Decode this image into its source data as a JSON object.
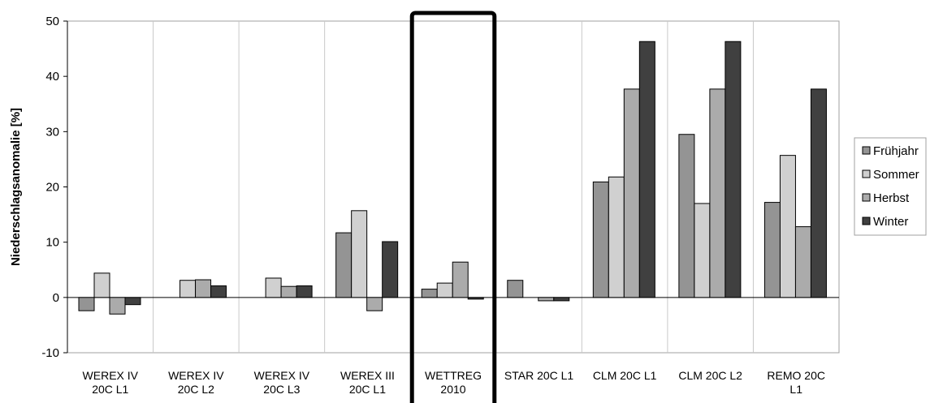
{
  "chart_data": {
    "type": "bar",
    "ylabel": "Niederschlagsanomalie [%]",
    "xlabel": "",
    "ylim": [
      -10,
      50
    ],
    "yticks": [
      -10,
      0,
      10,
      20,
      30,
      40,
      50
    ],
    "grid": "vertical separators between category groups",
    "legend_position": "right",
    "highlighted_category": "WETTREG 2010",
    "categories": [
      [
        "WEREX IV",
        "20C L1"
      ],
      [
        "WEREX IV",
        "20C L2"
      ],
      [
        "WEREX IV",
        "20C L3"
      ],
      [
        "WEREX III",
        "20C L1"
      ],
      [
        "WETTREG",
        "2010"
      ],
      [
        "STAR 20C L1"
      ],
      [
        "CLM 20C L1"
      ],
      [
        "CLM 20C L2"
      ],
      [
        "REMO 20C",
        "L1"
      ]
    ],
    "series": [
      {
        "name": "Frühjahr",
        "color": "#949494",
        "values": [
          -2.4,
          0,
          0,
          11.7,
          1.5,
          3.1,
          20.9,
          29.5,
          17.2
        ]
      },
      {
        "name": "Sommer",
        "color": "#d0d0d0",
        "values": [
          4.4,
          3.1,
          3.5,
          15.7,
          2.6,
          0,
          21.8,
          17.0,
          25.7
        ]
      },
      {
        "name": "Herbst",
        "color": "#ababab",
        "values": [
          -3.0,
          3.2,
          2.0,
          -2.4,
          6.4,
          -0.6,
          37.7,
          37.7,
          12.8
        ]
      },
      {
        "name": "Winter",
        "color": "#404040",
        "values": [
          -1.3,
          2.1,
          2.1,
          10.1,
          -0.3,
          -0.6,
          46.3,
          46.3,
          37.7
        ]
      }
    ]
  }
}
